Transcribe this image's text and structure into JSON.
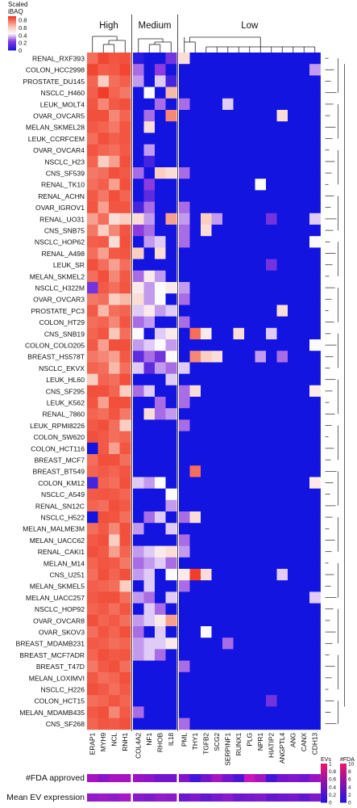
{
  "chart_data": {
    "type": "heatmap",
    "rows": [
      "RENAL_RXF393",
      "COLON_HCC2998",
      "PROSTATE_DU145",
      "NSCLC_H460",
      "LEUK_MOLT4",
      "OVAR_OVCAR5",
      "MELAN_SKMEL28",
      "LEUK_CCRFCEM",
      "OVAR_OVCAR4",
      "NSCLC_H23",
      "CNS_SF539",
      "RENAL_TK10",
      "RENAL_ACHN",
      "OVAR_IGROV1",
      "RENAL_UO31",
      "CNS_SNB75",
      "NSCLC_HOP62",
      "RENAL_A498",
      "LEUK_SR",
      "MELAN_SKMEL2",
      "NSCLC_H322M",
      "OVAR_OVCAR3",
      "PROSTATE_PC3",
      "COLON_HT29",
      "CNS_SNB19",
      "COLON_COLO205",
      "BREAST_HS578T",
      "NSCLC_EKVX",
      "LEUK_HL60",
      "CNS_SF295",
      "LEUK_K562",
      "RENAL_7860",
      "LEUK_RPMI8226",
      "COLON_SW620",
      "COLON_HCT116",
      "BREAST_MCF7",
      "BREAST_BT549",
      "COLON_KM12",
      "NSCLC_A549",
      "RENAL_SN12C",
      "NSCLC_H522",
      "MELAN_MALME3M",
      "MELAN_UACC62",
      "RENAL_CAKI1",
      "MELAN_M14",
      "CNS_U251",
      "MELAN_SKMEL5",
      "MELAN_UACC257",
      "NSCLC_HOP92",
      "OVAR_OVCAR8",
      "OVAR_SKOV3",
      "BREAST_MDAMB231",
      "BREAST_MCF7ADR",
      "BREAST_T47D",
      "MELAN_LOXIMVI",
      "NSCLC_H226",
      "COLON_HCT15",
      "MELAN_MDAMB435",
      "CNS_SF268"
    ],
    "columns": [
      "ERAP1",
      "MYH9",
      "NCL",
      "RNH1",
      "COL4A2",
      "NF1",
      "RHOB",
      "IL18",
      "PML",
      "THY1",
      "TGFB2",
      "SCG2",
      "SERPINF1",
      "RUNX1",
      "PLG",
      "NPR1",
      "HIATIP2",
      "ANGPTL4",
      "ANG",
      "CANX",
      "CDH13"
    ],
    "groups": [
      {
        "label": "High",
        "start": 0,
        "end": 3
      },
      {
        "label": "Medium",
        "start": 4,
        "end": 7
      },
      {
        "label": "Low",
        "start": 8,
        "end": 20
      }
    ],
    "legend": {
      "title": "Scaled\niBAQ",
      "ticks": [
        "0.8",
        "0.6",
        "0.4",
        "0.2",
        "0"
      ],
      "range": [
        0,
        0.9
      ]
    },
    "high_matrix": [
      [
        0.8,
        0.88,
        0.85,
        0.86
      ],
      [
        0.88,
        0.83,
        0.84,
        0.88
      ],
      [
        0.82,
        0.6,
        0.8,
        0.83
      ],
      [
        0.83,
        0.9,
        0.82,
        0.78
      ],
      [
        0.85,
        0.75,
        0.84,
        0.86
      ],
      [
        0.86,
        0.86,
        0.75,
        0.82
      ],
      [
        0.84,
        0.82,
        0.78,
        0.85
      ],
      [
        0.8,
        0.86,
        0.83,
        0.85
      ],
      [
        0.85,
        0.82,
        0.8,
        0.84
      ],
      [
        0.82,
        0.6,
        0.7,
        0.86
      ],
      [
        0.78,
        0.8,
        0.86,
        0.84
      ],
      [
        0.8,
        0.83,
        0.7,
        0.86
      ],
      [
        0.84,
        0.78,
        0.86,
        0.82
      ],
      [
        0.85,
        0.7,
        0.85,
        0.85
      ],
      [
        0.7,
        0.8,
        0.55,
        0.6
      ],
      [
        0.78,
        0.6,
        0.75,
        0.85
      ],
      [
        0.83,
        0.84,
        0.55,
        0.86
      ],
      [
        0.8,
        0.7,
        0.84,
        0.85
      ],
      [
        0.86,
        0.8,
        0.7,
        0.8
      ],
      [
        0.8,
        0.86,
        0.75,
        0.84
      ],
      [
        0.2,
        0.84,
        0.8,
        0.85
      ],
      [
        0.78,
        0.8,
        0.6,
        0.65
      ],
      [
        0.84,
        0.65,
        0.8,
        0.82
      ],
      [
        0.8,
        0.82,
        0.75,
        0.85
      ],
      [
        0.82,
        0.85,
        0.62,
        0.8
      ],
      [
        0.84,
        0.7,
        0.86,
        0.86
      ],
      [
        0.78,
        0.75,
        0.7,
        0.84
      ],
      [
        0.82,
        0.8,
        0.65,
        0.8
      ],
      [
        0.6,
        0.82,
        0.8,
        0.86
      ],
      [
        0.86,
        0.86,
        0.82,
        0.6
      ],
      [
        0.85,
        0.7,
        0.86,
        0.86
      ],
      [
        0.82,
        0.8,
        0.85,
        0.78
      ],
      [
        0.84,
        0.86,
        0.8,
        0.6
      ],
      [
        0.86,
        0.84,
        0.8,
        0.82
      ],
      [
        0.0,
        0.84,
        0.7,
        0.85
      ],
      [
        0.8,
        0.86,
        0.86,
        0.8
      ],
      [
        0.82,
        0.84,
        0.82,
        0.85
      ],
      [
        0.1,
        0.82,
        0.8,
        0.86
      ],
      [
        0.84,
        0.85,
        0.84,
        0.82
      ],
      [
        0.82,
        0.8,
        0.86,
        0.84
      ],
      [
        0.0,
        0.86,
        0.85,
        0.8
      ],
      [
        0.8,
        0.84,
        0.75,
        0.86
      ],
      [
        0.84,
        0.86,
        0.6,
        0.86
      ],
      [
        0.86,
        0.84,
        0.7,
        0.82
      ],
      [
        0.82,
        0.85,
        0.84,
        0.78
      ],
      [
        0.8,
        0.86,
        0.82,
        0.86
      ],
      [
        0.83,
        0.82,
        0.8,
        0.6
      ],
      [
        0.84,
        0.86,
        0.86,
        0.8
      ],
      [
        0.82,
        0.84,
        0.8,
        0.85
      ],
      [
        0.86,
        0.82,
        0.84,
        0.8
      ],
      [
        0.8,
        0.85,
        0.82,
        0.86
      ],
      [
        0.84,
        0.83,
        0.8,
        0.82
      ],
      [
        0.82,
        0.86,
        0.84,
        0.85
      ],
      [
        0.78,
        0.84,
        0.86,
        0.8
      ],
      [
        0.84,
        0.8,
        0.82,
        0.86
      ],
      [
        0.86,
        0.84,
        0.8,
        0.84
      ],
      [
        0.8,
        0.82,
        0.85,
        0.82
      ],
      [
        0.84,
        0.86,
        0.75,
        0.84
      ],
      [
        0.82,
        0.85,
        0.84,
        0.86
      ]
    ],
    "medium_matrix": [
      [
        0.05,
        0.0,
        0.0,
        0.2
      ],
      [
        0.3,
        0.0,
        0.25,
        0.0
      ],
      [
        0.35,
        0.0,
        0.4,
        0.1
      ],
      [
        0.0,
        0.45,
        0.0,
        0.65
      ],
      [
        0.0,
        0.0,
        0.3,
        0.0
      ],
      [
        0.0,
        0.3,
        0.0,
        0.75
      ],
      [
        0.0,
        0.55,
        0.0,
        0.0
      ],
      [
        0.0,
        0.0,
        0.0,
        0.0
      ],
      [
        0.0,
        0.35,
        0.0,
        0.0
      ],
      [
        0.0,
        0.1,
        0.0,
        0.0
      ],
      [
        0.3,
        0.0,
        0.6,
        0.55
      ],
      [
        0.0,
        0.25,
        0.0,
        0.0
      ],
      [
        0.0,
        0.15,
        0.0,
        0.0
      ],
      [
        0.1,
        0.3,
        0.0,
        0.0
      ],
      [
        0.55,
        0.35,
        0.0,
        0.7
      ],
      [
        0.25,
        0.3,
        0.0,
        0.0
      ],
      [
        0.0,
        0.35,
        0.4,
        0.0
      ],
      [
        0.6,
        0.0,
        0.55,
        0.0
      ],
      [
        0.0,
        0.0,
        0.0,
        0.0
      ],
      [
        0.3,
        0.5,
        0.35,
        0.0
      ],
      [
        0.5,
        0.35,
        0.45,
        0.5
      ],
      [
        0.55,
        0.35,
        0.45,
        0.0
      ],
      [
        0.4,
        0.5,
        0.35,
        0.4
      ],
      [
        0.3,
        0.35,
        0.0,
        0.0
      ],
      [
        0.45,
        0.0,
        0.4,
        0.5
      ],
      [
        0.35,
        0.4,
        0.45,
        0.35
      ],
      [
        0.15,
        0.3,
        0.2,
        0.45
      ],
      [
        0.4,
        0.15,
        0.35,
        0.3
      ],
      [
        0.0,
        0.0,
        0.0,
        0.4
      ],
      [
        0.3,
        0.4,
        0.0,
        0.0
      ],
      [
        0.0,
        0.0,
        0.3,
        0.0
      ],
      [
        0.0,
        0.55,
        0.3,
        0.35
      ],
      [
        0.0,
        0.0,
        0.0,
        0.0
      ],
      [
        0.0,
        0.0,
        0.0,
        0.0
      ],
      [
        0.0,
        0.0,
        0.0,
        0.0
      ],
      [
        0.0,
        0.0,
        0.0,
        0.0
      ],
      [
        0.0,
        0.0,
        0.0,
        0.0
      ],
      [
        0.4,
        0.35,
        0.45,
        0.0
      ],
      [
        0.0,
        0.0,
        0.0,
        0.45
      ],
      [
        0.0,
        0.0,
        0.0,
        0.35
      ],
      [
        0.0,
        0.3,
        0.4,
        0.0
      ],
      [
        0.35,
        0.0,
        0.0,
        0.4
      ],
      [
        0.0,
        0.0,
        0.0,
        0.0
      ],
      [
        0.35,
        0.4,
        0.5,
        0.55
      ],
      [
        0.3,
        0.35,
        0.4,
        0.3
      ],
      [
        0.35,
        0.4,
        0.0,
        0.45
      ],
      [
        0.0,
        0.4,
        0.0,
        0.0
      ],
      [
        0.35,
        0.3,
        0.0,
        0.4
      ],
      [
        0.0,
        0.4,
        0.3,
        0.0
      ],
      [
        0.35,
        0.4,
        0.5,
        0.7
      ],
      [
        0.3,
        0.0,
        0.4,
        0.0
      ],
      [
        0.35,
        0.4,
        0.4,
        0.5
      ],
      [
        0.35,
        0.4,
        0.3,
        0.0
      ],
      [
        0.0,
        0.0,
        0.0,
        0.0
      ],
      [
        0.0,
        0.0,
        0.0,
        0.0
      ],
      [
        0.0,
        0.0,
        0.0,
        0.0
      ],
      [
        0.0,
        0.0,
        0.0,
        0.0
      ],
      [
        0.3,
        0.0,
        0.0,
        0.0
      ],
      [
        0.0,
        0.0,
        0.0,
        0.0
      ]
    ],
    "low_nonzero": [
      [
        0,
        8,
        0.55
      ],
      [
        1,
        20,
        0.35
      ],
      [
        4,
        8,
        0.3
      ],
      [
        4,
        12,
        0.4
      ],
      [
        5,
        17,
        0.55
      ],
      [
        10,
        8,
        0.3
      ],
      [
        11,
        15,
        0.45
      ],
      [
        13,
        8,
        0.3
      ],
      [
        14,
        8,
        0.35
      ],
      [
        14,
        10,
        0.6
      ],
      [
        14,
        11,
        0.35
      ],
      [
        14,
        16,
        0.2
      ],
      [
        14,
        20,
        0.4
      ],
      [
        15,
        8,
        0.3
      ],
      [
        15,
        10,
        0.55
      ],
      [
        16,
        8,
        0.3
      ],
      [
        16,
        20,
        0.45
      ],
      [
        18,
        16,
        0.2
      ],
      [
        20,
        8,
        0.35
      ],
      [
        21,
        8,
        0.3
      ],
      [
        22,
        17,
        0.55
      ],
      [
        23,
        8,
        0.3
      ],
      [
        24,
        9,
        0.8
      ],
      [
        24,
        10,
        0.5
      ],
      [
        24,
        13,
        0.55
      ],
      [
        24,
        16,
        0.4
      ],
      [
        25,
        20,
        0.45
      ],
      [
        26,
        9,
        0.75
      ],
      [
        26,
        10,
        0.6
      ],
      [
        26,
        11,
        0.55
      ],
      [
        26,
        15,
        0.35
      ],
      [
        26,
        17,
        0.3
      ],
      [
        27,
        8,
        0.4
      ],
      [
        29,
        8,
        0.3
      ],
      [
        29,
        9,
        0.55
      ],
      [
        29,
        20,
        0.5
      ],
      [
        30,
        8,
        0.3
      ],
      [
        32,
        8,
        0.3
      ],
      [
        36,
        9,
        0.8
      ],
      [
        37,
        20,
        0.5
      ],
      [
        40,
        8,
        0.3
      ],
      [
        40,
        9,
        0.55
      ],
      [
        42,
        8,
        0.3
      ],
      [
        43,
        8,
        0.35
      ],
      [
        45,
        8,
        0.5
      ],
      [
        45,
        9,
        0.9
      ],
      [
        45,
        10,
        0.55
      ],
      [
        45,
        17,
        0.4
      ],
      [
        46,
        8,
        0.3
      ],
      [
        47,
        20,
        0.4
      ],
      [
        50,
        10,
        0.45
      ],
      [
        51,
        12,
        0.3
      ],
      [
        53,
        8,
        0.3
      ],
      [
        56,
        16,
        0.2
      ],
      [
        58,
        8,
        0.3
      ]
    ],
    "annotation_rows": [
      {
        "label": "#FDA approved",
        "values": [
          0.55,
          0.45,
          0.55,
          0.55,
          0.5,
          0.45,
          0.35,
          0.35,
          0.4,
          0.15,
          0.35,
          0.55,
          0.35,
          0.2,
          0.7,
          0.55,
          0.15,
          0.35,
          0.4,
          0.35,
          0.5
        ]
      },
      {
        "label": "Mean EV expression",
        "values": [
          0.55,
          0.6,
          0.55,
          0.65,
          0.5,
          0.45,
          0.55,
          0.5,
          0.35,
          0.45,
          0.3,
          0.4,
          0.5,
          0.35,
          0.4,
          0.45,
          0.3,
          0.35,
          0.4,
          0.3,
          0.45
        ]
      }
    ],
    "annotation_legends": [
      {
        "title": "EVs",
        "ticks": [
          "1",
          "0.8",
          "0.6",
          "0.4",
          "0.2",
          "0"
        ]
      },
      {
        "title": "#FDA",
        "ticks": [
          "10",
          "8",
          "6",
          "4",
          "2",
          "0"
        ]
      }
    ]
  }
}
